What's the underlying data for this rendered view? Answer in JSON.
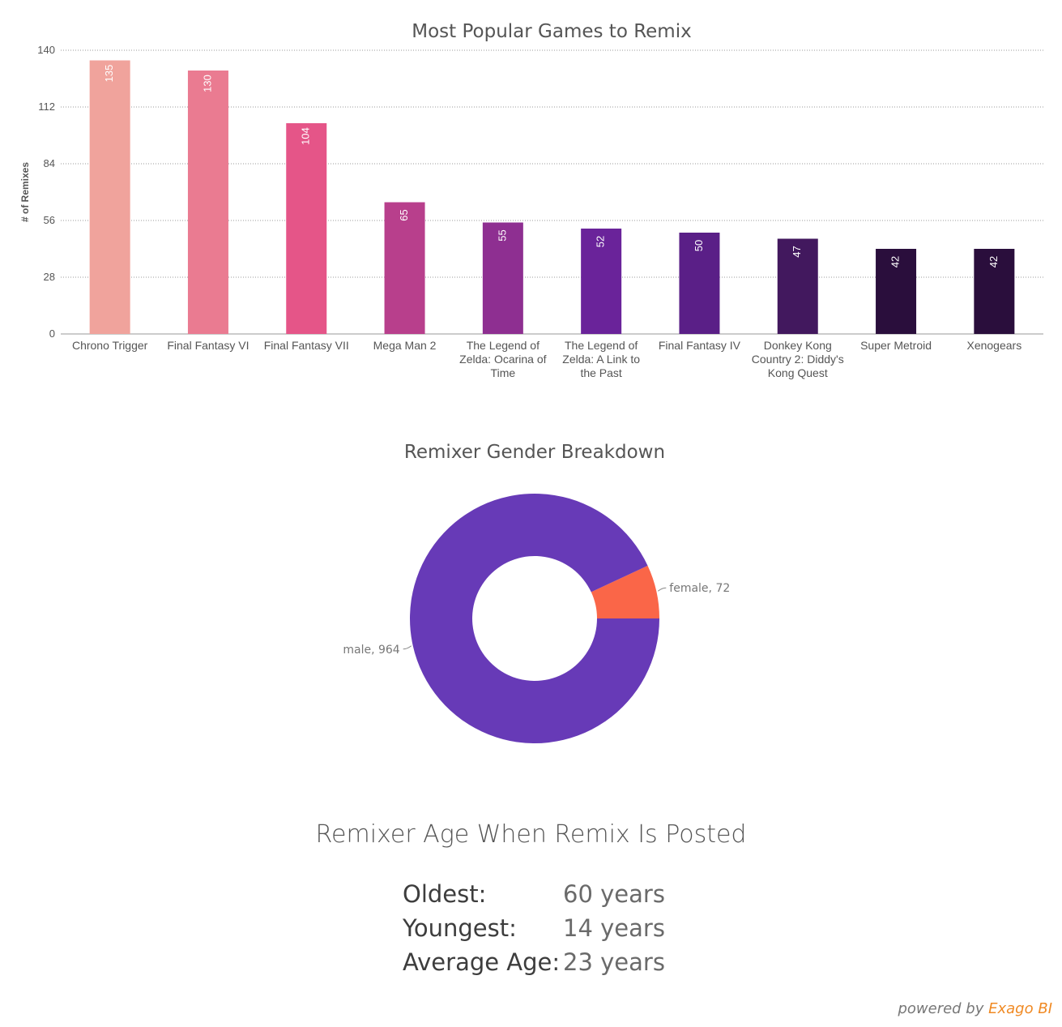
{
  "chart_data": [
    {
      "type": "bar",
      "title": "Most Popular Games to Remix",
      "ylabel": "# of Remixes",
      "xlabel": "",
      "ylim": [
        0,
        140
      ],
      "yticks": [
        0,
        28,
        56,
        84,
        112,
        140
      ],
      "grid": true,
      "categories": [
        "Chrono Trigger",
        "Final Fantasy VI",
        "Final Fantasy VII",
        "Mega Man 2",
        "The Legend of Zelda: Ocarina of Time",
        "The Legend of Zelda: A Link to the Past",
        "Final Fantasy IV",
        "Donkey Kong Country 2: Diddy's Kong Quest",
        "Super Metroid",
        "Xenogears"
      ],
      "category_lines": [
        [
          "Chrono Trigger"
        ],
        [
          "Final Fantasy VI"
        ],
        [
          "Final Fantasy VII"
        ],
        [
          "Mega Man 2"
        ],
        [
          "The Legend of",
          "Zelda: Ocarina of",
          "Time"
        ],
        [
          "The Legend of",
          "Zelda: A Link to",
          "the Past"
        ],
        [
          "Final Fantasy IV"
        ],
        [
          "Donkey Kong",
          "Country 2: Diddy's",
          "Kong Quest"
        ],
        [
          "Super Metroid"
        ],
        [
          "Xenogears"
        ]
      ],
      "values": [
        135,
        130,
        104,
        65,
        55,
        52,
        50,
        47,
        42,
        42
      ],
      "colors": [
        "#f0a39c",
        "#ea7b91",
        "#e55588",
        "#b83f8c",
        "#8e2f91",
        "#6a239a",
        "#5a1f87",
        "#42185e",
        "#2a0e3c",
        "#2a0e3c"
      ]
    },
    {
      "type": "pie",
      "title": "Remixer Gender Breakdown",
      "labels": [
        "female",
        "male"
      ],
      "values": [
        72,
        964
      ],
      "colors": [
        "#fa6648",
        "#673ab7"
      ],
      "slice_labels": [
        "female, 72",
        "male, 964"
      ]
    }
  ],
  "age": {
    "title": "Remixer Age When Remix Is Posted",
    "rows": [
      {
        "label": "Oldest:",
        "value": "60 years"
      },
      {
        "label": "Youngest:",
        "value": "14 years"
      },
      {
        "label": "Average Age:",
        "value": "23 years"
      }
    ]
  },
  "footer": {
    "powered": "powered by",
    "brand": "Exago BI"
  }
}
